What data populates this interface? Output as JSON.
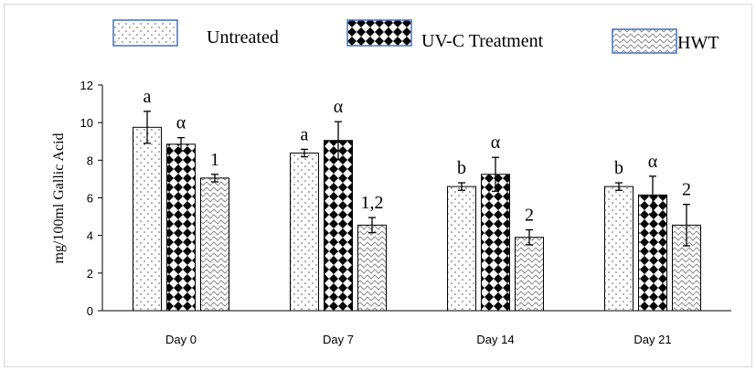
{
  "chart_data": {
    "type": "bar",
    "title": "",
    "xlabel": "",
    "ylabel": "mg/100ml Gallic Acid",
    "ylim": [
      0,
      12
    ],
    "yticks": [
      0,
      2,
      4,
      6,
      8,
      10,
      12
    ],
    "grid": false,
    "legend_position": "top",
    "categories": [
      "Day 0",
      "Day 7",
      "Day 14",
      "Day 21"
    ],
    "series": [
      {
        "name": "Untreated",
        "pattern": "dots",
        "values": [
          9.75,
          8.38,
          6.6,
          6.6
        ],
        "errors": [
          0.85,
          0.2,
          0.2,
          0.2
        ],
        "annotations": [
          "a",
          "a",
          "b",
          "b"
        ]
      },
      {
        "name": "UV-C Treatment",
        "pattern": "diamonds",
        "values": [
          8.85,
          9.05,
          7.25,
          6.15
        ],
        "errors": [
          0.35,
          1.0,
          0.9,
          1.0
        ],
        "annotations": [
          "α",
          "α",
          "α",
          "α"
        ]
      },
      {
        "name": "HWT",
        "pattern": "waves",
        "values": [
          7.05,
          4.55,
          3.9,
          4.55
        ],
        "errors": [
          0.2,
          0.4,
          0.4,
          1.1
        ],
        "annotations": [
          "1",
          "1,2",
          "2",
          "2"
        ]
      }
    ]
  }
}
